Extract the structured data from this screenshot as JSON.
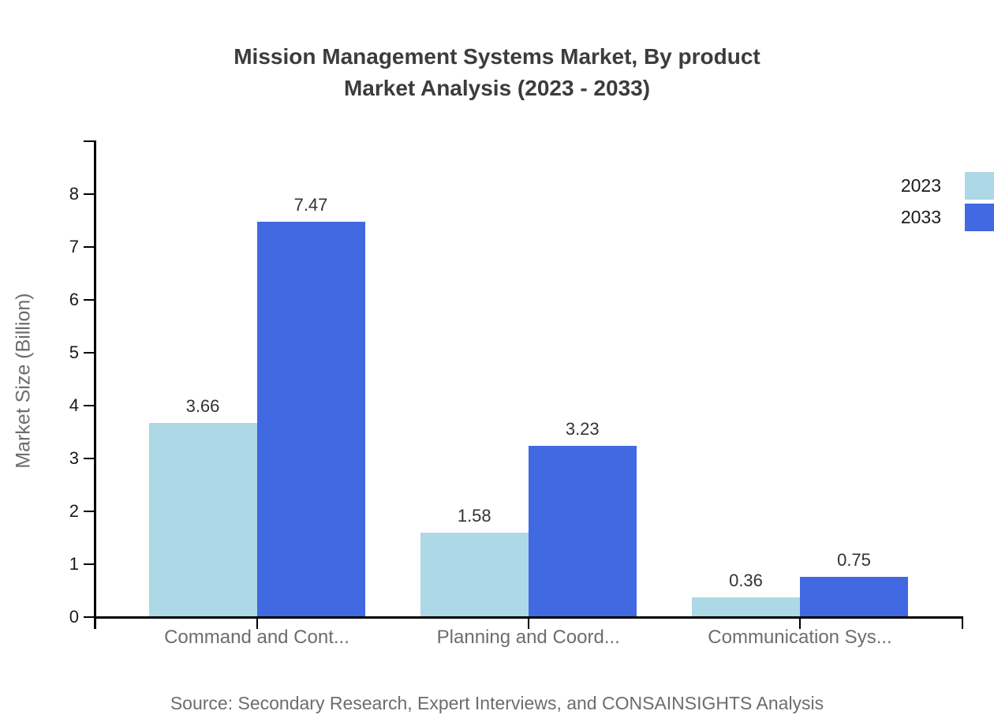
{
  "chart_data": {
    "type": "bar",
    "title_line1": "Mission Management Systems Market, By product",
    "title_line2": "Market Analysis (2023 - 2033)",
    "ylabel": "Market Size (Billion)",
    "xlabel": "",
    "categories": [
      "Command and Cont...",
      "Planning and Coord...",
      "Communication Sys..."
    ],
    "series": [
      {
        "name": "2023",
        "color": "#ADD8E6",
        "values": [
          3.66,
          1.58,
          0.36
        ]
      },
      {
        "name": "2033",
        "color": "#4169E1",
        "values": [
          7.47,
          3.23,
          0.75
        ]
      }
    ],
    "value_labels": [
      "3.66",
      "7.47",
      "1.58",
      "3.23",
      "0.36",
      "0.75"
    ],
    "ylim": [
      0,
      9
    ],
    "yticks": [
      0,
      1,
      2,
      3,
      4,
      5,
      6,
      7,
      8
    ],
    "grid": false,
    "legend_position": "top-right",
    "background": "#ffffff"
  },
  "source_note": "Source: Secondary Research, Expert Interviews, and CONSAINSIGHTS Analysis"
}
